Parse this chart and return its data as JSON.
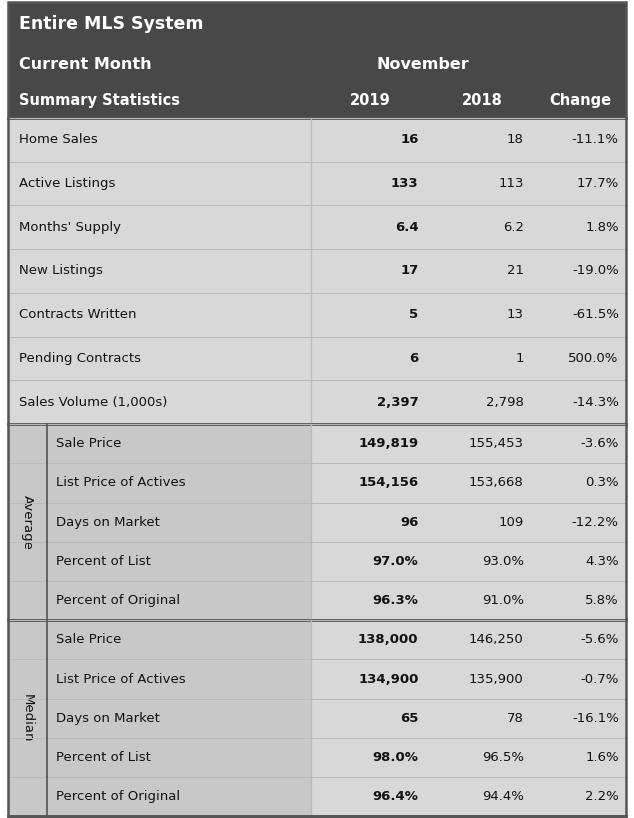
{
  "title_line1": "Entire MLS System",
  "title_line2": "Current Month",
  "month": "November",
  "header_bg": "#484848",
  "header_text_color": "#ffffff",
  "row_bg": "#d8d8d8",
  "sidebar_bg": "#c8c8c8",
  "section_div_color": "#555555",
  "row_div_color": "#bbbbbb",
  "col_headers": [
    "Summary Statistics",
    "2019",
    "2018",
    "Change"
  ],
  "summary_rows": [
    [
      "Home Sales",
      "16",
      "18",
      "-11.1%"
    ],
    [
      "Active Listings",
      "133",
      "113",
      "17.7%"
    ],
    [
      "Months' Supply",
      "6.4",
      "6.2",
      "1.8%"
    ],
    [
      "New Listings",
      "17",
      "21",
      "-19.0%"
    ],
    [
      "Contracts Written",
      "5",
      "13",
      "-61.5%"
    ],
    [
      "Pending Contracts",
      "6",
      "1",
      "500.0%"
    ],
    [
      "Sales Volume (1,000s)",
      "2,397",
      "2,798",
      "-14.3%"
    ]
  ],
  "average_label": "Average",
  "average_rows": [
    [
      "Sale Price",
      "149,819",
      "155,453",
      "-3.6%"
    ],
    [
      "List Price of Actives",
      "154,156",
      "153,668",
      "0.3%"
    ],
    [
      "Days on Market",
      "96",
      "109",
      "-12.2%"
    ],
    [
      "Percent of List",
      "97.0%",
      "93.0%",
      "4.3%"
    ],
    [
      "Percent of Original",
      "96.3%",
      "91.0%",
      "5.8%"
    ]
  ],
  "median_label": "Median",
  "median_rows": [
    [
      "Sale Price",
      "138,000",
      "146,250",
      "-5.6%"
    ],
    [
      "List Price of Actives",
      "134,900",
      "135,900",
      "-0.7%"
    ],
    [
      "Days on Market",
      "65",
      "78",
      "-16.1%"
    ],
    [
      "Percent of List",
      "98.0%",
      "96.5%",
      "1.6%"
    ],
    [
      "Percent of Original",
      "96.4%",
      "94.4%",
      "2.2%"
    ]
  ],
  "fig_width": 6.34,
  "fig_height": 8.18,
  "dpi": 100
}
